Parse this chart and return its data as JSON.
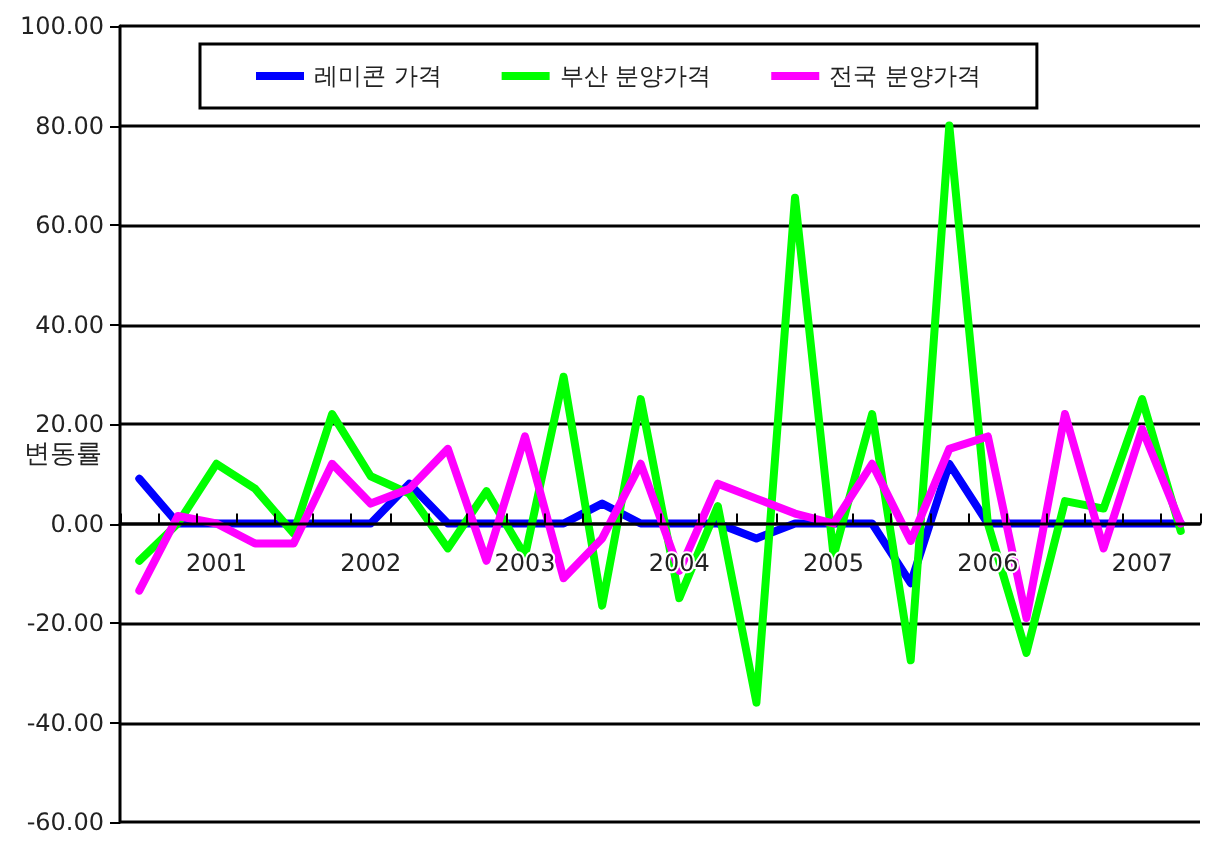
{
  "chart_data": {
    "type": "line",
    "ylabel": "변동률",
    "categories": [
      null,
      null,
      "2001",
      null,
      null,
      null,
      "2002",
      null,
      null,
      null,
      "2003",
      null,
      null,
      null,
      "2004",
      null,
      null,
      null,
      "2005",
      null,
      null,
      null,
      "2006",
      null,
      null,
      null,
      "2007",
      null
    ],
    "series": [
      {
        "name": "레미콘 가격",
        "color": "#0000ff",
        "values": [
          9,
          0,
          0,
          0,
          0,
          0,
          0,
          8,
          0,
          0,
          0,
          0,
          4,
          0,
          0,
          0,
          -3,
          0,
          0,
          0,
          -12,
          12,
          0,
          0,
          0,
          0,
          0,
          0
        ]
      },
      {
        "name": "부산 분양가격",
        "color": "#00ff00",
        "values": [
          -7.5,
          0,
          12,
          7,
          -2,
          22,
          9.5,
          6,
          -5,
          6.5,
          -6.5,
          29.5,
          -16.5,
          25,
          -15,
          3.5,
          -36,
          65.5,
          -6.5,
          22,
          -27.5,
          80,
          0,
          -26,
          4.5,
          3,
          25,
          -1.5
        ]
      },
      {
        "name": "전국 분양가격",
        "color": "#ff00ff",
        "values": [
          -13.5,
          1.5,
          0,
          -4,
          -4,
          12,
          4,
          7,
          15,
          -7.5,
          17.5,
          -11,
          -3,
          12,
          -9.5,
          8,
          5,
          2,
          0,
          12,
          -3.5,
          15,
          17.5,
          -19,
          22,
          -5,
          19,
          0
        ]
      }
    ],
    "ylim": [
      -60,
      100
    ],
    "yticks": [
      {
        "value": -60,
        "label": "-60.00"
      },
      {
        "value": -40,
        "label": "-40.00"
      },
      {
        "value": -20,
        "label": "-20.00"
      },
      {
        "value": 0,
        "label": "0.00"
      },
      {
        "value": 20,
        "label": "20.00"
      },
      {
        "value": 40,
        "label": "40.00"
      },
      {
        "value": 60,
        "label": "60.00"
      },
      {
        "value": 80,
        "label": "80.00"
      },
      {
        "value": 100,
        "label": "100.00"
      }
    ],
    "grid": "y",
    "legend": "top",
    "marker": "none",
    "line_style": "solid"
  }
}
